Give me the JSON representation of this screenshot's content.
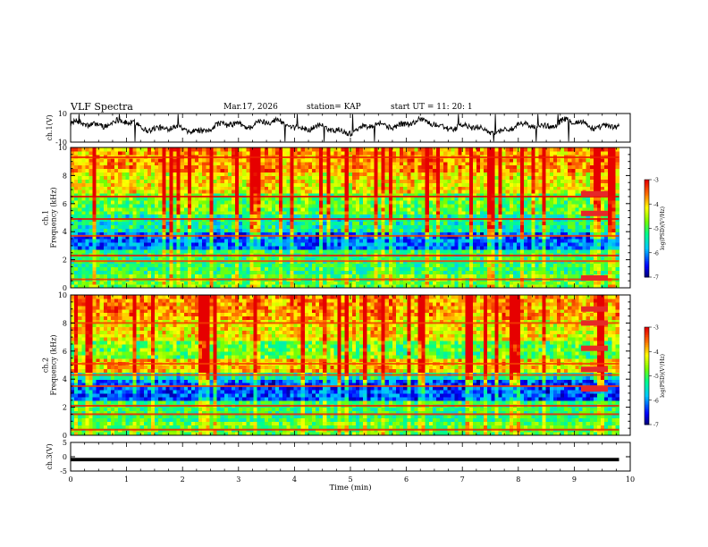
{
  "header": {
    "title": "VLF Spectra",
    "date": "Mar.17, 2026",
    "station": "station= KAP",
    "start": "start  UT =   11: 20: 1"
  },
  "chart_data": {
    "type": "heatmap",
    "panels": [
      {
        "name": "ch1-waveform",
        "type": "line",
        "ylabel": "ch.1(V)",
        "ylim": [
          -10,
          10
        ],
        "yticks": [
          "10",
          "-10"
        ],
        "note": "noisy voltage trace oscillating roughly between -4 and +6 V over 0-9.8 min"
      },
      {
        "name": "ch1-spectrogram",
        "type": "heatmap",
        "ylabel": "Frequency (kHz)",
        "channel_label": "ch.1",
        "ylim": [
          0,
          10
        ],
        "yticks": [
          "0",
          "2",
          "4",
          "6",
          "8",
          "10"
        ],
        "colorbar": {
          "label": "log(PSD)(V²/Hz)",
          "range": [
            -7,
            -3
          ],
          "ticks": [
            "-3",
            "-4",
            "-5",
            "-6",
            "-7"
          ]
        }
      },
      {
        "name": "ch2-spectrogram",
        "type": "heatmap",
        "ylabel": "Frequency (kHz)",
        "channel_label": "ch.2",
        "ylim": [
          0,
          10
        ],
        "yticks": [
          "0",
          "2",
          "4",
          "6",
          "8",
          "10"
        ],
        "colorbar": {
          "label": "log(PSD)(V²/Hz)",
          "range": [
            -7,
            -3
          ],
          "ticks": [
            "-3",
            "-4",
            "-5",
            "-6",
            "-7"
          ]
        }
      },
      {
        "name": "ch3-waveform",
        "type": "line",
        "ylabel": "ch.3(V)",
        "ylim": [
          -5,
          5
        ],
        "yticks": [
          "5",
          "0",
          "-5"
        ],
        "note": "thick flat line near -1 V"
      }
    ],
    "xaxis": {
      "label": "Time (min)",
      "range": [
        0,
        10
      ],
      "ticks": [
        "0",
        "1",
        "2",
        "3",
        "4",
        "5",
        "6",
        "7",
        "8",
        "9",
        "10"
      ],
      "data_end": 9.8
    }
  }
}
